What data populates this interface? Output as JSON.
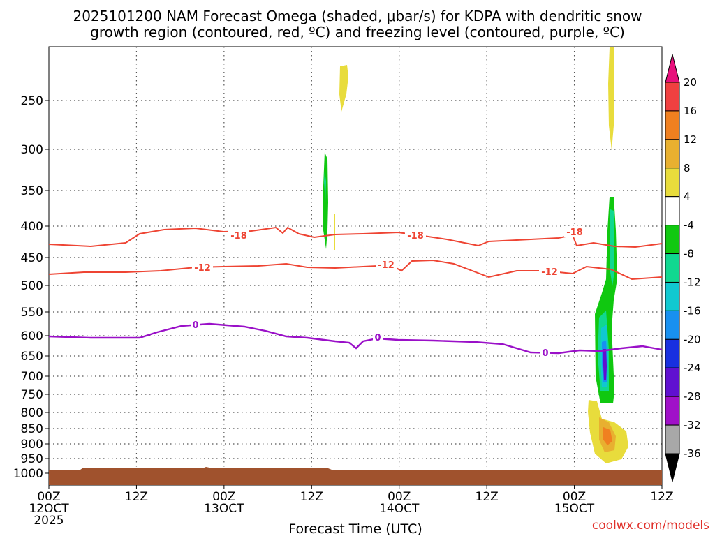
{
  "title_line1": "2025101200 NAM Forecast Omega (shaded, μbar/s) for KDPA with dendritic snow",
  "title_line2": "growth region (contoured, red, ºC) and freezing level (contoured, purple, ºC)",
  "xlabel": "Forecast Time (UTC)",
  "credit": "coolwx.com/models",
  "chart_data": {
    "type": "heatmap",
    "ylabel": "",
    "y_ticks": [
      250,
      300,
      350,
      400,
      450,
      500,
      550,
      600,
      650,
      700,
      750,
      800,
      850,
      900,
      950,
      1000
    ],
    "x_ticks": [
      {
        "line1": "00Z",
        "line2": "12OCT",
        "line3": "2025"
      },
      {
        "line1": "12Z",
        "line2": "",
        "line3": ""
      },
      {
        "line1": "00Z",
        "line2": "13OCT",
        "line3": ""
      },
      {
        "line1": "12Z",
        "line2": "",
        "line3": ""
      },
      {
        "line1": "00Z",
        "line2": "14OCT",
        "line3": ""
      },
      {
        "line1": "12Z",
        "line2": "",
        "line3": ""
      },
      {
        "line1": "00Z",
        "line2": "15OCT",
        "line3": ""
      },
      {
        "line1": "12Z",
        "line2": "",
        "line3": ""
      }
    ],
    "x_range_hours": [
      0,
      84
    ],
    "contours": [
      {
        "color": "#ee4433",
        "labels": [
          "-18",
          "-18",
          "-18"
        ]
      },
      {
        "color": "#ee4433",
        "labels": [
          "-12",
          "-12",
          "-12"
        ]
      },
      {
        "color": "#9a10c8",
        "labels": [
          "0",
          "0",
          "0"
        ]
      }
    ],
    "colorbar": {
      "labels": [
        "20",
        "16",
        "12",
        "8",
        "4",
        "-4",
        "-8",
        "-12",
        "-16",
        "-20",
        "-24",
        "-28",
        "-32",
        "-36"
      ],
      "colors": [
        "#e8107c",
        "#f04040",
        "#f08020",
        "#e8b030",
        "#e8dc3c",
        "#ffffff",
        "#10c810",
        "#10d890",
        "#10c8d0",
        "#1890f0",
        "#1830e0",
        "#6010d0",
        "#a010c8",
        "#a8a8a8",
        "#000000"
      ]
    }
  }
}
